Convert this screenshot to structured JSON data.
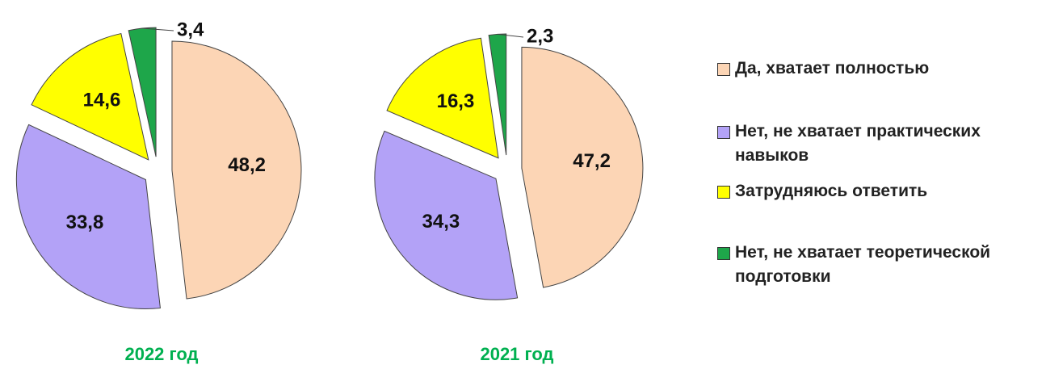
{
  "chart_data": [
    {
      "type": "pie",
      "title": "2022 год",
      "values": [
        48.2,
        33.8,
        14.6,
        3.4
      ],
      "value_labels": [
        "48,2",
        "33,8",
        "14,6",
        "3,4"
      ]
    },
    {
      "type": "pie",
      "title": "2021 год",
      "values": [
        47.2,
        34.3,
        16.3,
        2.3
      ],
      "value_labels": [
        "47,2",
        "34,3",
        "16,3",
        "2,3"
      ]
    }
  ],
  "legend": {
    "labels": [
      "Да, хватает полностью",
      "Нет, не хватает практических навыков",
      "Затрудняюсь ответить",
      "Нет, не хватает теоретической подготовки"
    ],
    "colors": [
      "#fcd5b5",
      "#b3a2f7",
      "#ffff00",
      "#1ea64a"
    ]
  }
}
